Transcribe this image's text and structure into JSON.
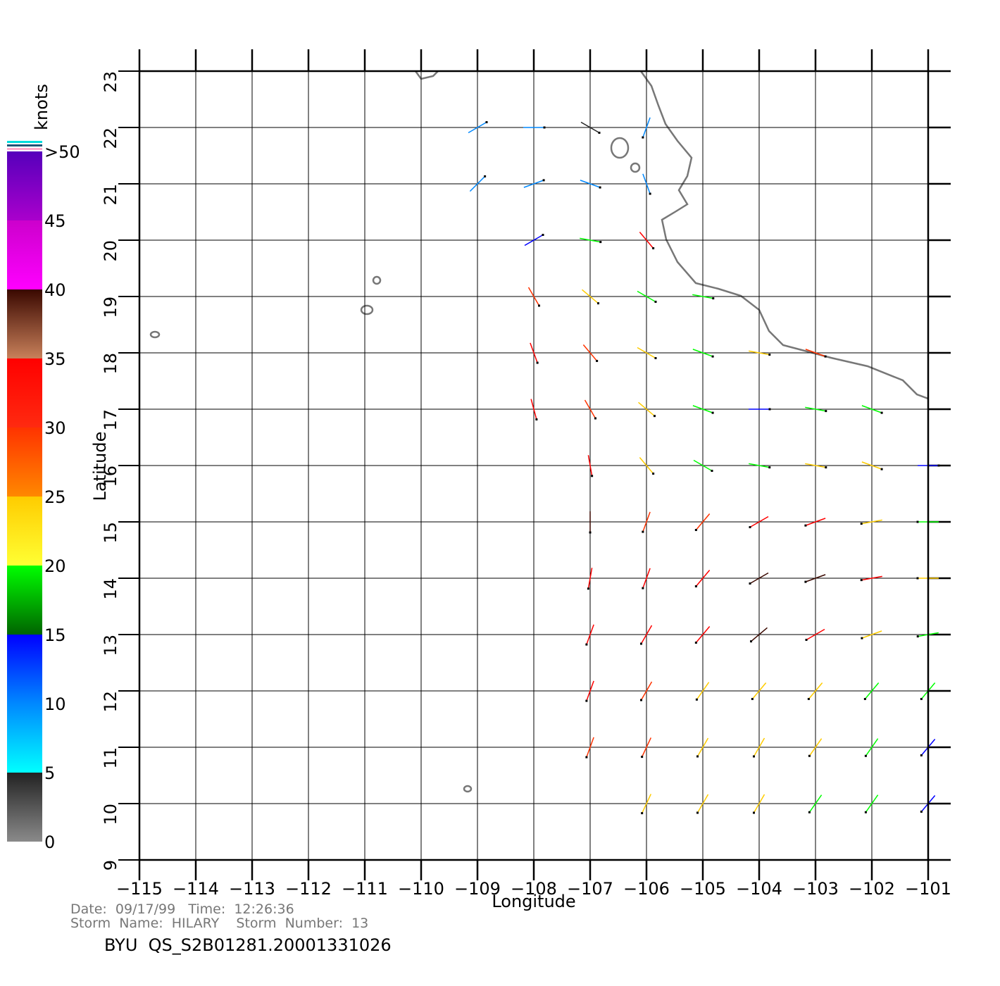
{
  "chart_data": {
    "type": "vector-map",
    "xlabel": "Longitude",
    "ylabel": "Latitude",
    "xlim": [
      -115,
      -101
    ],
    "ylim": [
      9,
      23
    ],
    "xticks": [
      {
        "value": -115,
        "label": "−115"
      },
      {
        "value": -114,
        "label": "−114"
      },
      {
        "value": -113,
        "label": "−113"
      },
      {
        "value": -112,
        "label": "−112"
      },
      {
        "value": -111,
        "label": "−111"
      },
      {
        "value": -110,
        "label": "−110"
      },
      {
        "value": -109,
        "label": "−109"
      },
      {
        "value": -108,
        "label": "−108"
      },
      {
        "value": -107,
        "label": "−107"
      },
      {
        "value": -106,
        "label": "−106"
      },
      {
        "value": -105,
        "label": "−105"
      },
      {
        "value": -104,
        "label": "−104"
      },
      {
        "value": -103,
        "label": "−103"
      },
      {
        "value": -102,
        "label": "−102"
      },
      {
        "value": -101,
        "label": "−101"
      }
    ],
    "yticks": [
      9,
      10,
      11,
      12,
      13,
      14,
      15,
      16,
      17,
      18,
      19,
      20,
      21,
      22,
      23
    ],
    "grid": true,
    "colorbar": {
      "label": "knots",
      "range": [
        0,
        50
      ],
      "ticks": [
        0,
        5,
        10,
        15,
        20,
        25,
        30,
        35,
        40,
        45,
        {
          "value": 50,
          "label": ">50"
        }
      ],
      "segments": [
        {
          "from": 0,
          "to": 5,
          "colors": [
            "#8a8a8a",
            "#222222"
          ]
        },
        {
          "from": 5,
          "to": 10,
          "colors": [
            "#00ffff",
            "#0088ff"
          ]
        },
        {
          "from": 10,
          "to": 15,
          "colors": [
            "#0088ff",
            "#0000ff"
          ]
        },
        {
          "from": 15,
          "to": 20,
          "colors": [
            "#006400",
            "#00ff00"
          ]
        },
        {
          "from": 20,
          "to": 25,
          "colors": [
            "#ffff33",
            "#ffcc00"
          ]
        },
        {
          "from": 25,
          "to": 30,
          "colors": [
            "#ff8800",
            "#ff3300"
          ]
        },
        {
          "from": 30,
          "to": 35,
          "colors": [
            "#ff2a10",
            "#ff0000"
          ]
        },
        {
          "from": 35,
          "to": 40,
          "colors": [
            "#c8805a",
            "#3a0800"
          ]
        },
        {
          "from": 40,
          "to": 45,
          "colors": [
            "#ff00ff",
            "#cc00cc"
          ]
        },
        {
          "from": 45,
          "to": 50,
          "colors": [
            "#aa00cc",
            "#5500bb"
          ]
        }
      ]
    },
    "wind": {
      "lon": [
        -109,
        -108,
        -107,
        -106,
        -109,
        -108,
        -107,
        -106,
        -108,
        -107,
        -106,
        -108,
        -107,
        -106,
        -105,
        -108,
        -107,
        -106,
        -105,
        -104,
        -103,
        -108,
        -107,
        -106,
        -105,
        -104,
        -103,
        -102,
        -107,
        -106,
        -105,
        -104,
        -103,
        -102,
        -101,
        -107,
        -106,
        -105,
        -104,
        -103,
        -102,
        -101,
        -107,
        -106,
        -105,
        -104,
        -103,
        -102,
        -101,
        -107,
        -106,
        -105,
        -104,
        -103,
        -102,
        -101,
        -107,
        -106,
        -105,
        -104,
        -103,
        -102,
        -101,
        -107,
        -106,
        -105,
        -104,
        -103,
        -102,
        -101,
        -106,
        -105,
        -104,
        -103,
        -102,
        -101
      ],
      "lat": [
        22,
        22,
        22,
        22,
        21,
        21,
        21,
        21,
        20,
        20,
        20,
        19,
        19,
        19,
        19,
        18,
        18,
        18,
        18,
        18,
        18,
        17,
        17,
        17,
        17,
        17,
        17,
        17,
        16,
        16,
        16,
        16,
        16,
        16,
        16,
        15,
        15,
        15,
        15,
        15,
        15,
        15,
        14,
        14,
        14,
        14,
        14,
        14,
        14,
        13,
        13,
        13,
        13,
        13,
        13,
        13,
        12,
        12,
        12,
        12,
        12,
        12,
        12,
        11,
        11,
        11,
        11,
        11,
        11,
        11,
        10,
        10,
        10,
        10,
        10,
        10
      ],
      "speed": [
        7,
        5,
        4,
        8,
        8,
        9,
        6,
        5,
        12,
        17,
        30,
        28,
        22,
        18,
        17,
        32,
        26,
        22,
        18,
        20,
        28,
        33,
        27,
        22,
        18,
        14,
        16,
        19,
        34,
        24,
        18,
        17,
        20,
        22,
        14,
        36,
        28,
        27,
        30,
        34,
        22,
        17,
        33,
        32,
        34,
        38,
        36,
        30,
        20,
        31,
        30,
        33,
        36,
        32,
        24,
        18,
        30,
        27,
        24,
        22,
        21,
        19,
        16,
        29,
        26,
        23,
        22,
        20,
        18,
        14,
        24,
        22,
        21,
        19,
        17,
        13
      ],
      "direction": [
        60,
        90,
        120,
        200,
        45,
        70,
        110,
        160,
        60,
        100,
        140,
        150,
        130,
        120,
        100,
        160,
        140,
        120,
        110,
        100,
        110,
        165,
        150,
        130,
        110,
        90,
        100,
        110,
        170,
        140,
        120,
        100,
        100,
        110,
        90,
        180,
        200,
        220,
        240,
        250,
        260,
        270,
        190,
        200,
        220,
        240,
        250,
        260,
        270,
        200,
        210,
        220,
        230,
        240,
        250,
        260,
        200,
        210,
        215,
        220,
        220,
        220,
        220,
        200,
        205,
        210,
        210,
        215,
        215,
        220,
        205,
        210,
        210,
        215,
        215,
        220
      ]
    },
    "footer": {
      "date_line": "Date:  09/17/99   Time:  12:26:36",
      "storm_line": "Storm  Name:  HILARY    Storm  Number:  13",
      "file": "BYU  QS_S2B01281.20001331026"
    }
  }
}
